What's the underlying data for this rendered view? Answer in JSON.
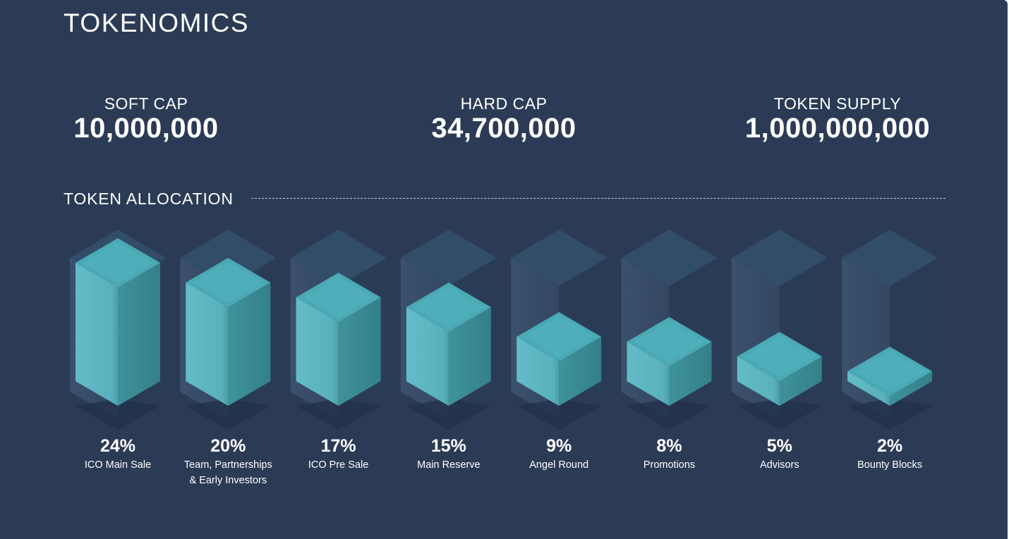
{
  "page": {
    "title": "TOKENOMICS"
  },
  "stats": {
    "soft_cap": {
      "label": "SOFT CAP",
      "value": "10,000,000"
    },
    "hard_cap": {
      "label": "HARD CAP",
      "value": "34,700,000"
    },
    "token_supply": {
      "label": "TOKEN SUPPLY",
      "value": "1,000,000,000"
    }
  },
  "allocation": {
    "heading": "TOKEN ALLOCATION"
  },
  "colors": {
    "background": "#2c3b55",
    "bar_front": "#5fb8c4",
    "bar_side": "#37858e",
    "bar_top": "#4aa9b5"
  },
  "chart_data": {
    "type": "bar",
    "title": "TOKEN ALLOCATION",
    "value_labels": [
      "24%",
      "20%",
      "17%",
      "15%",
      "9%",
      "8%",
      "5%",
      "2%"
    ],
    "categories": [
      [
        "ICO Main Sale"
      ],
      [
        "Team, Partnerships",
        "& Early Investors"
      ],
      [
        "ICO Pre Sale"
      ],
      [
        "Main Reserve"
      ],
      [
        "Angel Round"
      ],
      [
        "Promotions"
      ],
      [
        "Advisors"
      ],
      [
        "Bounty Blocks"
      ]
    ],
    "values": [
      24,
      20,
      17,
      15,
      9,
      8,
      5,
      2
    ],
    "unit": "%",
    "ylim": [
      0,
      24
    ]
  }
}
